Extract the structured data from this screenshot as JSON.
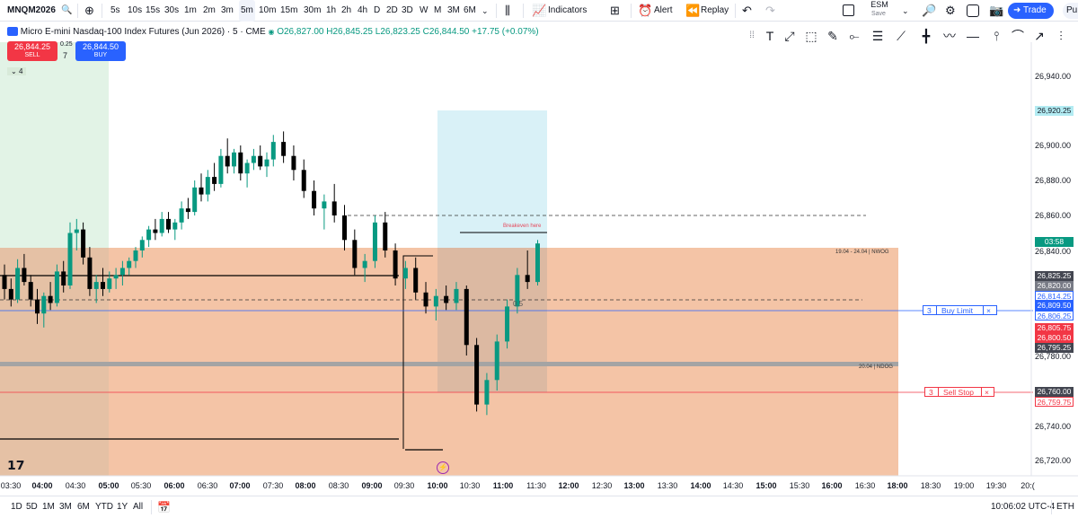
{
  "toolbar": {
    "symbol": "MNQM2026",
    "intervals": [
      "5s",
      "10s",
      "15s",
      "30s",
      "1m",
      "2m",
      "3m",
      "5m",
      "10m",
      "15m",
      "30m",
      "1h",
      "2h",
      "4h",
      "D",
      "2D",
      "3D",
      "W",
      "M",
      "3M",
      "6M"
    ],
    "active_interval": "5m",
    "indicators_label": "Indicators",
    "alert_label": "Alert",
    "replay_label": "Replay",
    "layout_name": "ESM",
    "layout_status": "Save",
    "trade_label": "Trade",
    "publish_label": "Pu"
  },
  "legend": {
    "title": "Micro E-mini Nasdaq-100 Index Futures (Jun 2026) · 5 · CME",
    "open": "O26,827.00",
    "high": "H26,845.25",
    "low": "L26,823.25",
    "close": "C26,844.50",
    "change": "+17.75 (+0.07%)",
    "sell_price": "26,844.25",
    "sell_label": "SELL",
    "spread": "0.25",
    "qty": "7",
    "buy_price": "26,844.50",
    "buy_label": "BUY",
    "collapsed_count": "4"
  },
  "colors": {
    "up": "#089981",
    "down": "#000000",
    "buy_blue": "#2962ff",
    "sell_red": "#f23645",
    "zone_orange": "#f4c4a6",
    "target_cyan": "#d9f1f7",
    "session_green": "#e2f3e6"
  },
  "price_axis": {
    "ticks": [
      "26,940.00",
      "26,900.00",
      "26,880.00",
      "26,860.00",
      "26,840.00",
      "26,780.00",
      "26,740.00",
      "26,720.00"
    ],
    "tags": [
      {
        "text": "26,920.25",
        "bg": "#b2ebf2",
        "fg": "#131722"
      },
      {
        "text": "03:58",
        "bg": "#089981",
        "fg": "#ffffff"
      },
      {
        "text": "26,825.25",
        "bg": "#434651",
        "fg": "#ffffff"
      },
      {
        "text": "26,820.00",
        "bg": "#787b86",
        "fg": "#ffffff"
      },
      {
        "text": "26,814.25",
        "bg": "#ffffff",
        "fg": "#2962ff"
      },
      {
        "text": "26,809.50",
        "bg": "#2962ff",
        "fg": "#ffffff"
      },
      {
        "text": "26,806.25",
        "bg": "#ffffff",
        "fg": "#2962ff"
      },
      {
        "text": "26,805.75",
        "bg": "#f23645",
        "fg": "#ffffff"
      },
      {
        "text": "26,800.50",
        "bg": "#f23645",
        "fg": "#ffffff"
      },
      {
        "text": "26,795.25",
        "bg": "#434651",
        "fg": "#ffffff"
      },
      {
        "text": "26,760.00",
        "bg": "#434651",
        "fg": "#ffffff"
      },
      {
        "text": "26,759.75",
        "bg": "#ffffff",
        "fg": "#f23645"
      }
    ]
  },
  "time_axis": [
    "03:30",
    "04:00",
    "04:30",
    "05:00",
    "05:30",
    "06:00",
    "06:30",
    "07:00",
    "07:30",
    "08:00",
    "08:30",
    "09:00",
    "09:30",
    "10:00",
    "10:30",
    "11:00",
    "11:30",
    "12:00",
    "12:30",
    "13:00",
    "13:30",
    "14:00",
    "14:30",
    "15:00",
    "15:30",
    "16:00",
    "16:30",
    "18:00",
    "18:30",
    "19:00",
    "19:30",
    "20:("
  ],
  "annotations": {
    "breakeven": "Breakeven here",
    "fib": "0.5",
    "nwog": "19.04 - 24.04 | NWOG",
    "ndog": "20.04 | NDOG"
  },
  "orders": {
    "buy_limit": {
      "qty": "3",
      "label": "Buy Limit",
      "close": "×"
    },
    "sell_stop": {
      "qty": "3",
      "label": "Sell Stop",
      "close": "×"
    }
  },
  "bottom": {
    "ranges": [
      "1D",
      "5D",
      "1M",
      "3M",
      "6M",
      "YTD",
      "1Y",
      "All"
    ],
    "clock": "10:06:02 UTC-4",
    "session": "ETH"
  },
  "chart_data": {
    "type": "candlestick",
    "symbol": "MNQM2026",
    "interval": "5m",
    "candles": [
      {
        "t": "03:30",
        "o": 26826,
        "h": 26832,
        "l": 26812,
        "c": 26818
      },
      {
        "t": "03:35",
        "o": 26818,
        "h": 26824,
        "l": 26808,
        "c": 26812
      },
      {
        "t": "03:40",
        "o": 26812,
        "h": 26835,
        "l": 26810,
        "c": 26830
      },
      {
        "t": "03:45",
        "o": 26830,
        "h": 26838,
        "l": 26820,
        "c": 26822
      },
      {
        "t": "03:50",
        "o": 26822,
        "h": 26826,
        "l": 26808,
        "c": 26812
      },
      {
        "t": "03:55",
        "o": 26812,
        "h": 26818,
        "l": 26798,
        "c": 26804
      },
      {
        "t": "04:00",
        "o": 26804,
        "h": 26816,
        "l": 26796,
        "c": 26814
      },
      {
        "t": "04:05",
        "o": 26814,
        "h": 26822,
        "l": 26806,
        "c": 26810
      },
      {
        "t": "04:10",
        "o": 26810,
        "h": 26832,
        "l": 26808,
        "c": 26828
      },
      {
        "t": "04:15",
        "o": 26828,
        "h": 26834,
        "l": 26816,
        "c": 26820
      },
      {
        "t": "04:20",
        "o": 26820,
        "h": 26856,
        "l": 26818,
        "c": 26850
      },
      {
        "t": "04:25",
        "o": 26850,
        "h": 26858,
        "l": 26840,
        "c": 26852
      },
      {
        "t": "04:30",
        "o": 26852,
        "h": 26856,
        "l": 26832,
        "c": 26836
      },
      {
        "t": "04:35",
        "o": 26836,
        "h": 26842,
        "l": 26814,
        "c": 26818
      },
      {
        "t": "04:40",
        "o": 26818,
        "h": 26826,
        "l": 26810,
        "c": 26822
      },
      {
        "t": "04:45",
        "o": 26822,
        "h": 26830,
        "l": 26814,
        "c": 26818
      },
      {
        "t": "04:50",
        "o": 26818,
        "h": 26828,
        "l": 26816,
        "c": 26824
      },
      {
        "t": "04:55",
        "o": 26824,
        "h": 26830,
        "l": 26818,
        "c": 26826
      },
      {
        "t": "05:00",
        "o": 26826,
        "h": 26834,
        "l": 26820,
        "c": 26830
      },
      {
        "t": "05:05",
        "o": 26830,
        "h": 26836,
        "l": 26826,
        "c": 26834
      },
      {
        "t": "05:10",
        "o": 26834,
        "h": 26842,
        "l": 26830,
        "c": 26840
      },
      {
        "t": "05:15",
        "o": 26840,
        "h": 26848,
        "l": 26836,
        "c": 26846
      },
      {
        "t": "05:20",
        "o": 26846,
        "h": 26854,
        "l": 26842,
        "c": 26852
      },
      {
        "t": "05:25",
        "o": 26852,
        "h": 26858,
        "l": 26846,
        "c": 26850
      },
      {
        "t": "05:30",
        "o": 26850,
        "h": 26862,
        "l": 26848,
        "c": 26858
      },
      {
        "t": "05:35",
        "o": 26858,
        "h": 26862,
        "l": 26850,
        "c": 26852
      },
      {
        "t": "05:40",
        "o": 26852,
        "h": 26858,
        "l": 26846,
        "c": 26856
      },
      {
        "t": "05:45",
        "o": 26856,
        "h": 26868,
        "l": 26852,
        "c": 26864
      },
      {
        "t": "05:50",
        "o": 26864,
        "h": 26870,
        "l": 26858,
        "c": 26862
      },
      {
        "t": "05:55",
        "o": 26862,
        "h": 26880,
        "l": 26860,
        "c": 26876
      },
      {
        "t": "06:00",
        "o": 26876,
        "h": 26884,
        "l": 26868,
        "c": 26872
      },
      {
        "t": "06:05",
        "o": 26872,
        "h": 26886,
        "l": 26868,
        "c": 26882
      },
      {
        "t": "06:10",
        "o": 26882,
        "h": 26890,
        "l": 26874,
        "c": 26878
      },
      {
        "t": "06:15",
        "o": 26878,
        "h": 26898,
        "l": 26876,
        "c": 26894
      },
      {
        "t": "06:20",
        "o": 26894,
        "h": 26904,
        "l": 26884,
        "c": 26888
      },
      {
        "t": "06:25",
        "o": 26888,
        "h": 26898,
        "l": 26884,
        "c": 26896
      },
      {
        "t": "06:30",
        "o": 26896,
        "h": 26900,
        "l": 26880,
        "c": 26884
      },
      {
        "t": "06:35",
        "o": 26884,
        "h": 26892,
        "l": 26876,
        "c": 26890
      },
      {
        "t": "06:40",
        "o": 26890,
        "h": 26898,
        "l": 26886,
        "c": 26894
      },
      {
        "t": "06:45",
        "o": 26894,
        "h": 26900,
        "l": 26886,
        "c": 26888
      },
      {
        "t": "06:50",
        "o": 26888,
        "h": 26896,
        "l": 26882,
        "c": 26892
      }
    ],
    "levels": {
      "buy_limit": 26806.25,
      "sell_stop": 26760.0,
      "target": 26920.25,
      "breakeven": 26845.25,
      "fib_0_5": 26814.25
    }
  }
}
